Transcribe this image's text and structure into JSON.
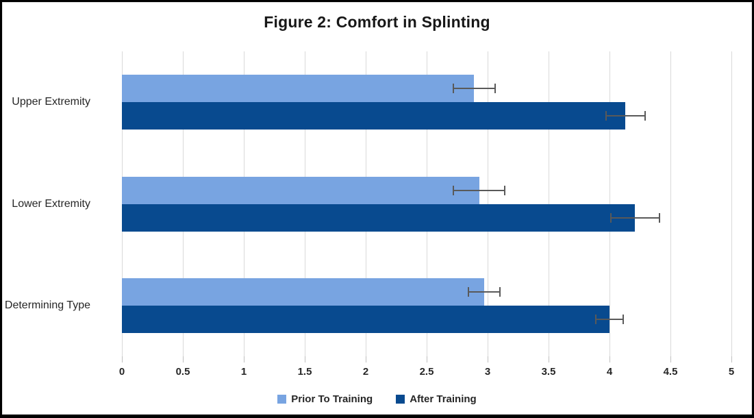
{
  "title": "Figure 2: Comfort in Splinting",
  "chart_data": {
    "type": "bar",
    "orientation": "horizontal",
    "title": "Figure 2: Comfort in Splinting",
    "categories": [
      "Upper Extremity",
      "Lower Extremity",
      "Determining Type"
    ],
    "series": [
      {
        "name": "Prior To Training",
        "color": "#78A4E1",
        "values": [
          2.89,
          2.93,
          2.97
        ],
        "errors": [
          0.17,
          0.21,
          0.13
        ]
      },
      {
        "name": "After Training",
        "color": "#084A8F",
        "values": [
          4.13,
          4.21,
          4.0
        ],
        "errors": [
          0.16,
          0.2,
          0.11
        ]
      }
    ],
    "xlim": [
      0,
      5
    ],
    "xticks": [
      "0",
      "0.5",
      "1",
      "1.5",
      "2",
      "2.5",
      "3",
      "3.5",
      "4",
      "4.5",
      "5"
    ],
    "grid": true,
    "legend_position": "bottom",
    "colors": {
      "gridline": "#D9D9D9",
      "tick": "#BFBFBF",
      "error_bar": "#595959",
      "text": "#262626",
      "frame_border": "#000000",
      "background": "#FFFFFF"
    }
  }
}
